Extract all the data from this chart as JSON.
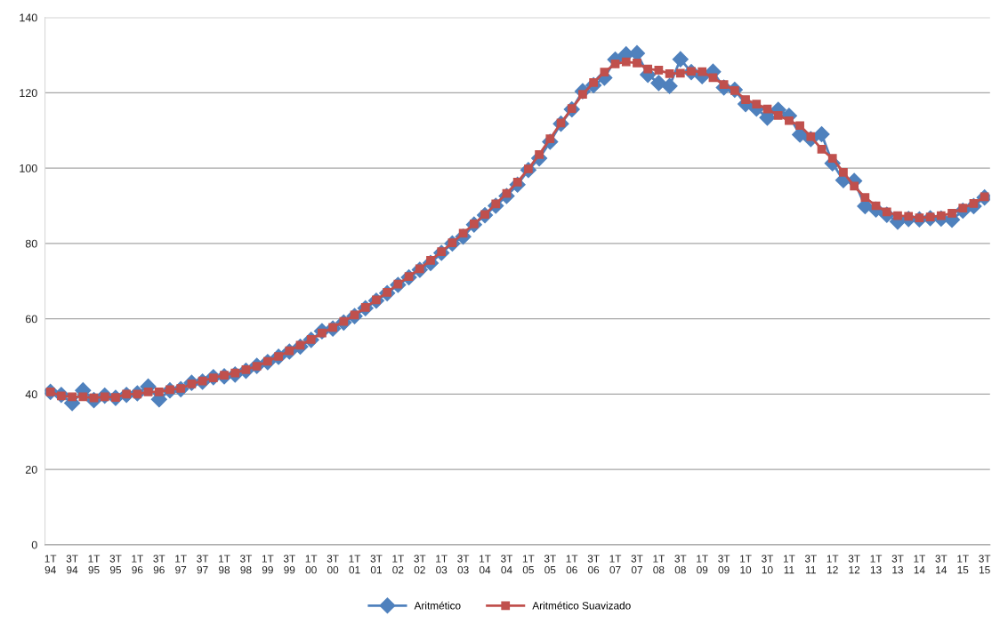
{
  "chart_data": {
    "type": "line",
    "categories": [
      "1T\n94",
      null,
      "3T\n94",
      null,
      "1T\n95",
      null,
      "3T\n95",
      null,
      "1T\n96",
      null,
      "3T\n96",
      null,
      "1T\n97",
      null,
      "3T\n97",
      null,
      "1T\n98",
      null,
      "3T\n98",
      null,
      "1T\n99",
      null,
      "3T\n99",
      null,
      "1T\n00",
      null,
      "3T\n00",
      null,
      "1T\n01",
      null,
      "3T\n01",
      null,
      "1T\n02",
      null,
      "3T\n02",
      null,
      "1T\n03",
      null,
      "3T\n03",
      null,
      "1T\n04",
      null,
      "3T\n04",
      null,
      "1T\n05",
      null,
      "3T\n05",
      null,
      "1T\n06",
      null,
      "3T\n06",
      null,
      "1T\n07",
      null,
      "3T\n07",
      null,
      "1T\n08",
      null,
      "3T\n08",
      null,
      "1T\n09",
      null,
      "3T\n09",
      null,
      "1T\n10",
      null,
      "3T\n10",
      null,
      "1T\n11",
      null,
      "3T\n11",
      null,
      "1T\n12",
      null,
      "3T\n12",
      null,
      "1T\n13",
      null,
      "3T\n13",
      null,
      "1T\n14",
      null,
      "3T\n14",
      null,
      "1T\n15",
      null,
      "3T\n15"
    ],
    "series": [
      {
        "name": "Aritmético",
        "color": "#4f81bd",
        "marker": "diamond",
        "values": [
          40.6,
          39.8,
          37.6,
          41.0,
          38.4,
          39.6,
          39.0,
          39.8,
          40.2,
          42.0,
          38.6,
          41.0,
          41.3,
          43.0,
          43.3,
          44.5,
          44.7,
          45.2,
          46.2,
          47.5,
          48.5,
          49.9,
          51.3,
          52.6,
          54.4,
          56.7,
          57.4,
          59.0,
          60.7,
          62.8,
          64.8,
          66.8,
          69.0,
          71.0,
          73.0,
          74.8,
          77.5,
          80.0,
          81.8,
          85.0,
          87.5,
          90.0,
          92.6,
          95.6,
          99.5,
          102.6,
          107.0,
          111.8,
          115.6,
          120.4,
          122.0,
          124.0,
          128.8,
          130.2,
          130.5,
          124.8,
          122.6,
          121.8,
          128.9,
          125.5,
          124.4,
          125.6,
          121.4,
          120.8,
          117.0,
          115.8,
          113.4,
          115.5,
          113.9,
          108.9,
          107.7,
          109.0,
          101.3,
          96.8,
          96.6,
          89.9,
          89.0,
          87.6,
          85.8,
          86.5,
          86.4,
          86.7,
          86.6,
          86.3,
          88.7,
          89.9,
          92.2
        ]
      },
      {
        "name": "Aritmético Suavizado",
        "color": "#c0504d",
        "marker": "square",
        "values": [
          40.6,
          39.5,
          39.3,
          39.3,
          39.0,
          39.3,
          39.1,
          40.0,
          40.0,
          40.6,
          40.6,
          41.2,
          41.5,
          42.7,
          43.5,
          44.3,
          45.0,
          45.6,
          46.5,
          47.4,
          48.7,
          50.0,
          51.5,
          53.0,
          54.5,
          56.2,
          57.7,
          59.3,
          61.0,
          63.0,
          65.0,
          67.0,
          69.2,
          71.2,
          73.3,
          75.5,
          77.8,
          80.2,
          82.7,
          85.2,
          87.7,
          90.5,
          93.3,
          96.3,
          99.8,
          103.6,
          107.8,
          112.0,
          115.8,
          119.6,
          122.7,
          125.5,
          127.7,
          128.2,
          127.9,
          126.3,
          126.0,
          125.1,
          125.2,
          125.7,
          125.6,
          124.0,
          122.2,
          120.6,
          118.2,
          117.0,
          115.7,
          114.0,
          112.6,
          111.3,
          108.4,
          105.0,
          102.6,
          98.9,
          95.2,
          92.2,
          90.0,
          88.4,
          87.4,
          87.2,
          86.8,
          87.0,
          87.4,
          88.0,
          89.4,
          90.6,
          92.4
        ]
      }
    ],
    "ylim": [
      0,
      140
    ],
    "yticks": [
      0,
      20,
      40,
      60,
      80,
      100,
      120,
      140
    ],
    "grid": "y",
    "legend": "bottom",
    "line_style": "solid"
  }
}
